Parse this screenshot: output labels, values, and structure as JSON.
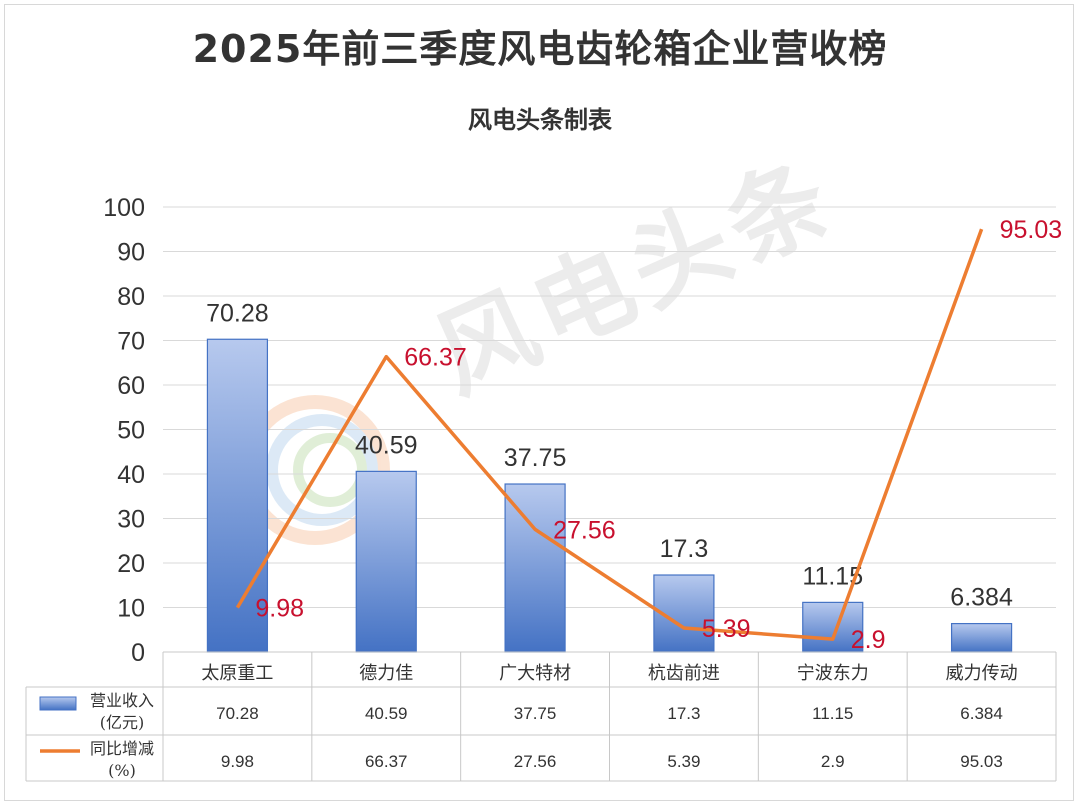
{
  "title": "2025年前三季度风电齿轮箱企业营收榜",
  "subtitle": "风电头条制表",
  "watermark": "风电头条",
  "colors": {
    "bar": "#4472c4",
    "line": "#ed7d31",
    "line_label": "#c8102e",
    "grid": "#d9d9d9",
    "text": "#333333"
  },
  "chart_data": {
    "type": "bar",
    "categories": [
      "太原重工",
      "德力佳",
      "广大特材",
      "杭齿前进",
      "宁波东力",
      "威力传动"
    ],
    "ylim": [
      0,
      100
    ],
    "yticks": [
      0,
      10,
      20,
      30,
      40,
      50,
      60,
      70,
      80,
      90,
      100
    ],
    "grid": true,
    "series": [
      {
        "name": "营业收入(亿元)",
        "type": "bar",
        "values": [
          70.28,
          40.59,
          37.75,
          17.3,
          11.15,
          6.384
        ],
        "labels": [
          "70.28",
          "40.59",
          "37.75",
          "17.3",
          "11.15",
          "6.384"
        ]
      },
      {
        "name": "同比增减(%)",
        "type": "line",
        "values": [
          9.98,
          66.37,
          27.56,
          5.39,
          2.9,
          95.03
        ],
        "labels": [
          "9.98",
          "66.37",
          "27.56",
          "5.39",
          "2.9",
          "95.03"
        ]
      }
    ],
    "table": {
      "rows": [
        {
          "legend_line1": "营业收入",
          "legend_line2": "(亿元)",
          "cells": [
            "70.28",
            "40.59",
            "37.75",
            "17.3",
            "11.15",
            "6.384"
          ]
        },
        {
          "legend_line1": "同比增减",
          "legend_line2": "(%)",
          "cells": [
            "9.98",
            "66.37",
            "27.56",
            "5.39",
            "2.9",
            "95.03"
          ]
        }
      ]
    }
  }
}
